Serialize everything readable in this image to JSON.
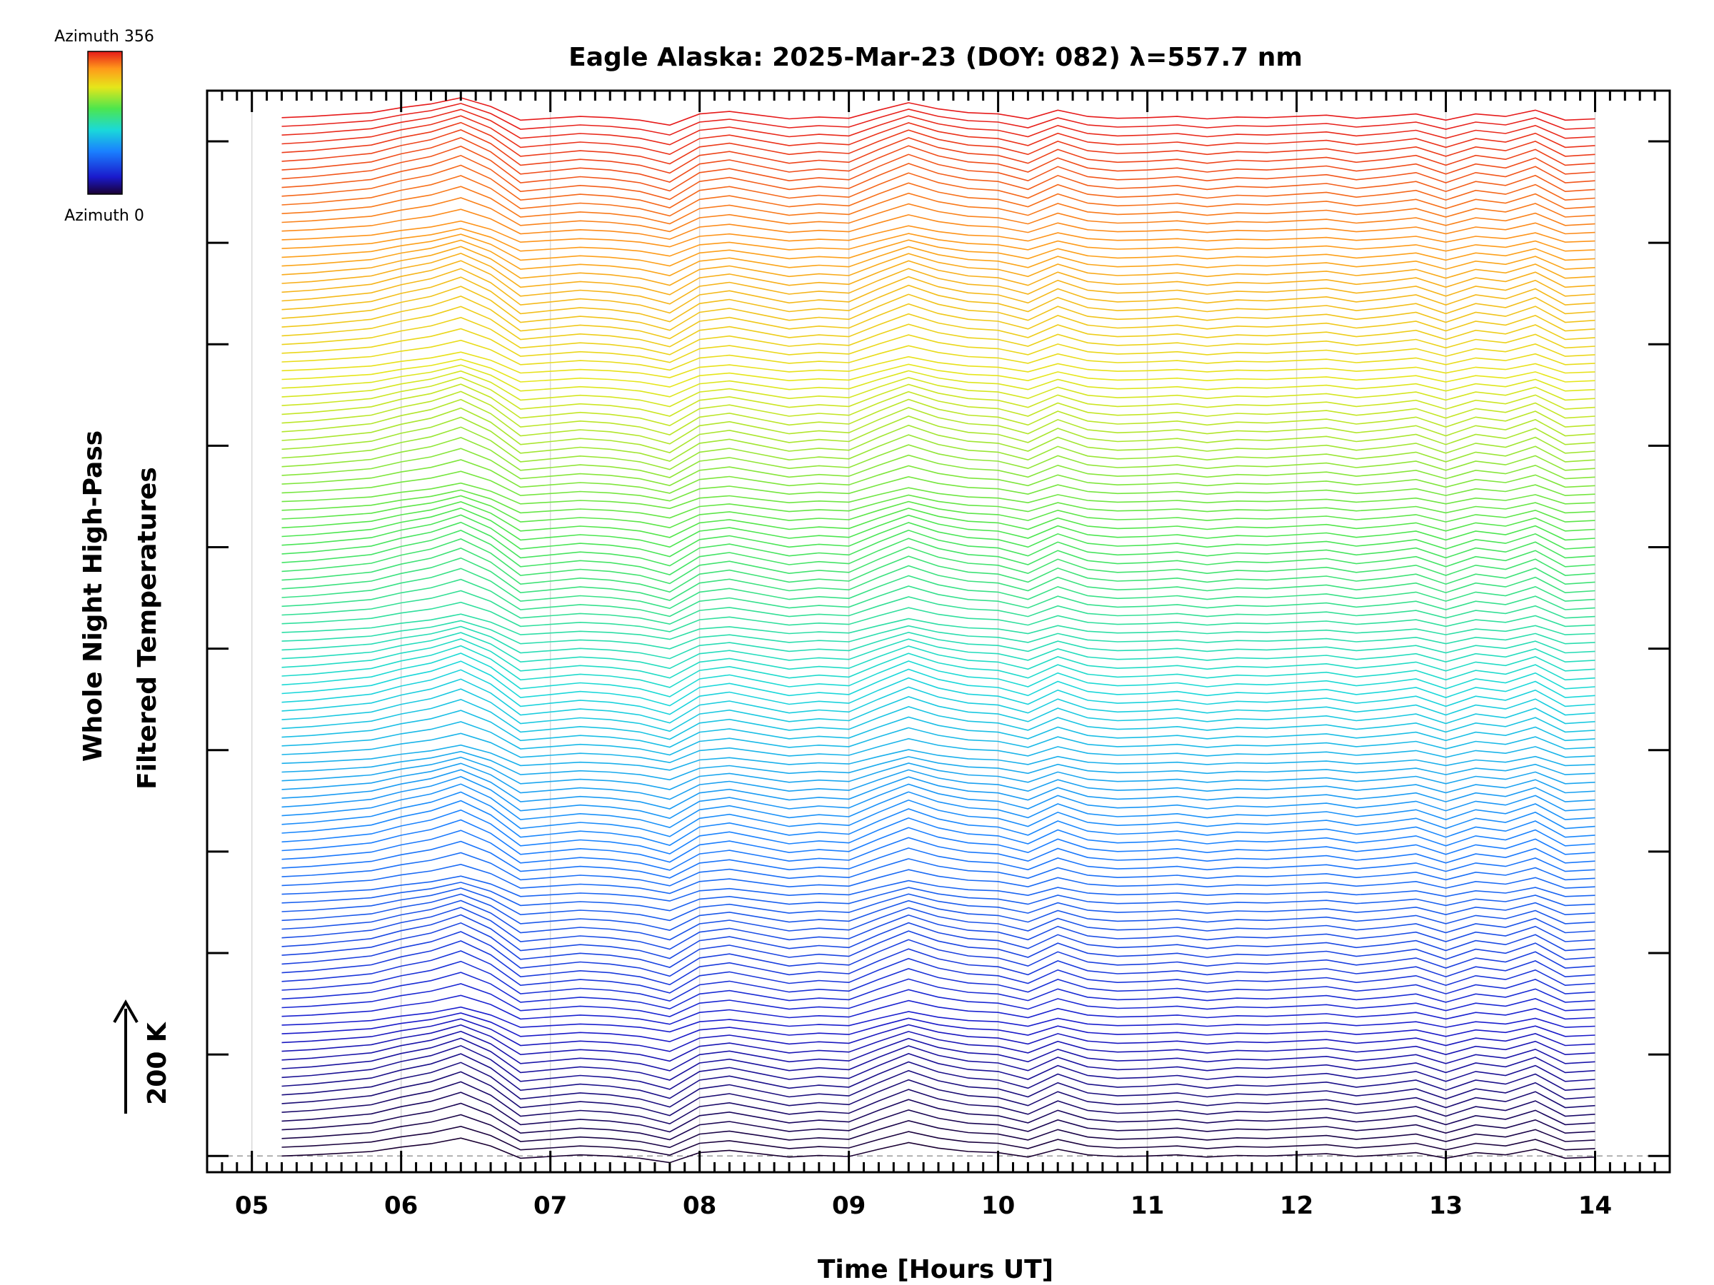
{
  "chart_data": {
    "type": "line",
    "title": "Eagle Alaska: 2025-Mar-23 (DOY: 082) λ=557.7 nm",
    "xlabel": "Time [Hours UT]",
    "ylabel_line1": "Whole Night High-Pass",
    "ylabel_line2": "Filtered Temperatures",
    "scale_label": "200 K",
    "xlim": [
      4.7,
      14.5
    ],
    "x_ticks": [
      {
        "value": 5,
        "label": "05"
      },
      {
        "value": 6,
        "label": "06"
      },
      {
        "value": 7,
        "label": "07"
      },
      {
        "value": 8,
        "label": "08"
      },
      {
        "value": 9,
        "label": "09"
      },
      {
        "value": 10,
        "label": "10"
      },
      {
        "value": 11,
        "label": "11"
      },
      {
        "value": 12,
        "label": "12"
      },
      {
        "value": 13,
        "label": "13"
      },
      {
        "value": 14,
        "label": "14"
      }
    ],
    "colorbar": {
      "top_label": "Azimuth 356",
      "bottom_label": "Azimuth 0",
      "min": 0,
      "max": 356
    },
    "x": [
      5.2,
      5.4,
      5.6,
      5.8,
      6.0,
      6.2,
      6.4,
      6.6,
      6.8,
      7.0,
      7.2,
      7.4,
      7.6,
      7.8,
      8.0,
      8.2,
      8.4,
      8.6,
      8.8,
      9.0,
      9.2,
      9.4,
      9.6,
      9.8,
      10.0,
      10.2,
      10.4,
      10.6,
      10.8,
      11.0,
      11.2,
      11.4,
      11.6,
      11.8,
      12.0,
      12.2,
      12.4,
      12.6,
      12.8,
      13.0,
      13.2,
      13.4,
      13.6,
      13.8,
      14.0
    ],
    "pattern": [
      0,
      10,
      25,
      40,
      80,
      110,
      160,
      90,
      -20,
      -5,
      10,
      0,
      -20,
      -60,
      30,
      50,
      20,
      -10,
      5,
      -5,
      60,
      120,
      70,
      40,
      30,
      -10,
      60,
      10,
      -5,
      0,
      10,
      -10,
      5,
      0,
      10,
      20,
      -5,
      10,
      30,
      -20,
      30,
      10,
      60,
      -20,
      -10
    ],
    "stack": {
      "count": 120,
      "azimuth_step": 3,
      "offset_step_K": 43,
      "baseline_K": 0,
      "ylim_K": [
        -80,
        5250
      ],
      "row_tick_interval_K": 500
    },
    "colors": {
      "axes": "#000000",
      "grid": "#d8d8d8",
      "baseline": "#9a9a9a"
    }
  }
}
